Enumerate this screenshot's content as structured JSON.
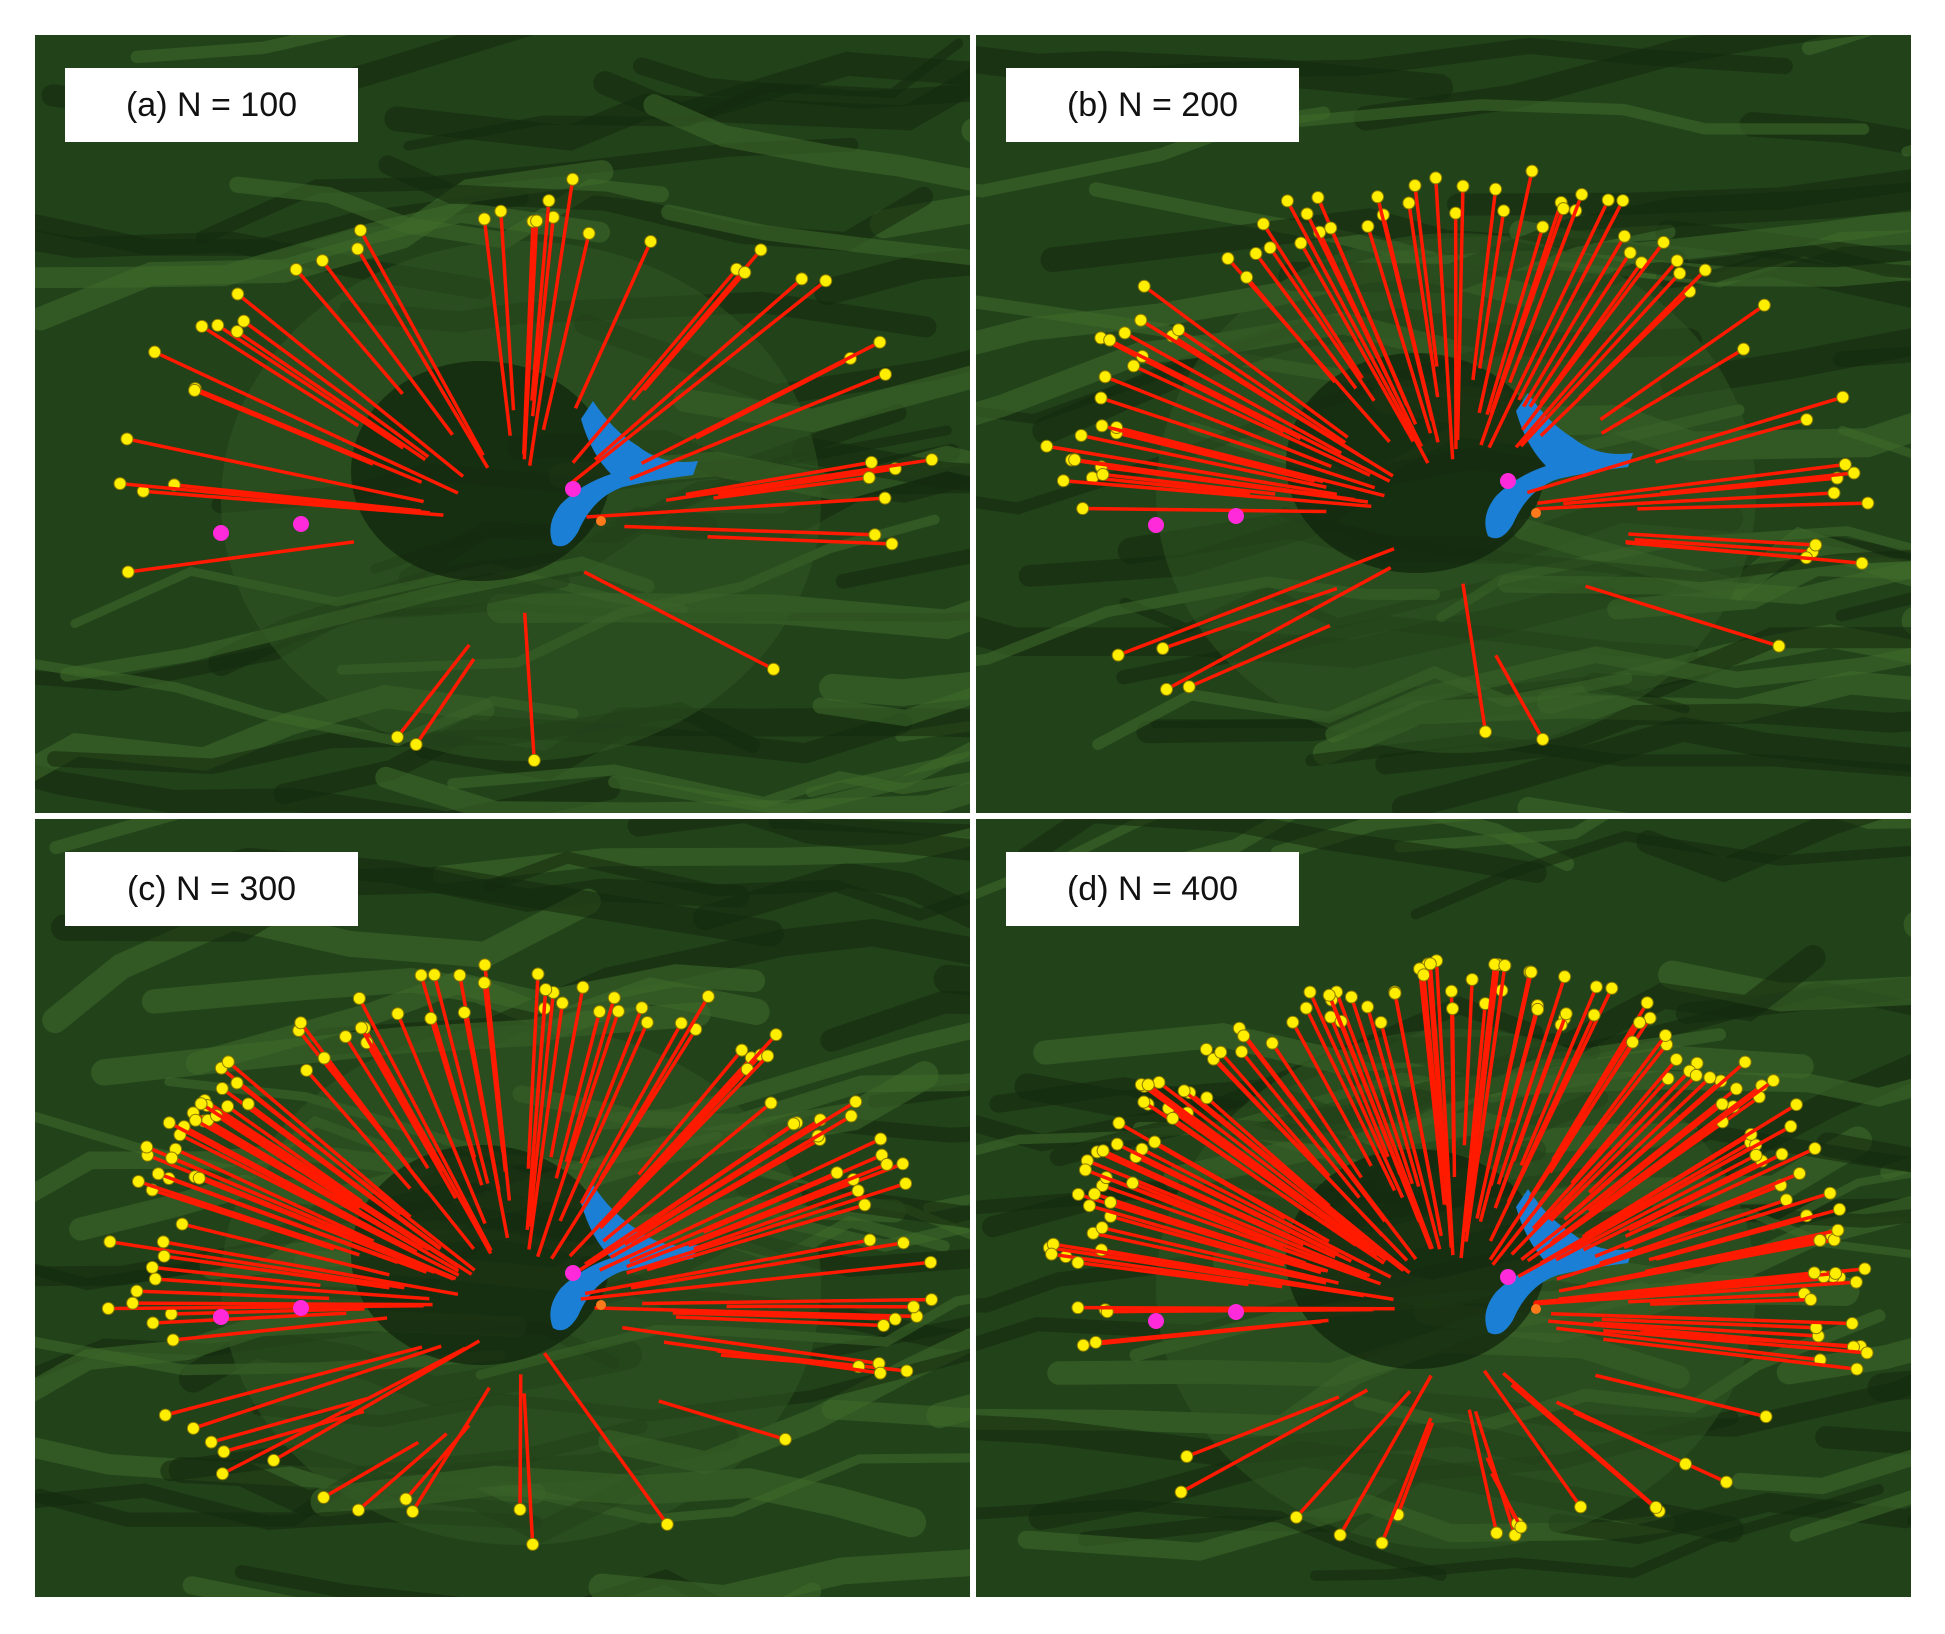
{
  "panels": [
    {
      "label": "(a) N = 100"
    },
    {
      "label": "(b)  N = 200"
    },
    {
      "label": "(c) N = 300"
    },
    {
      "label": "(d) N = 400"
    }
  ]
}
